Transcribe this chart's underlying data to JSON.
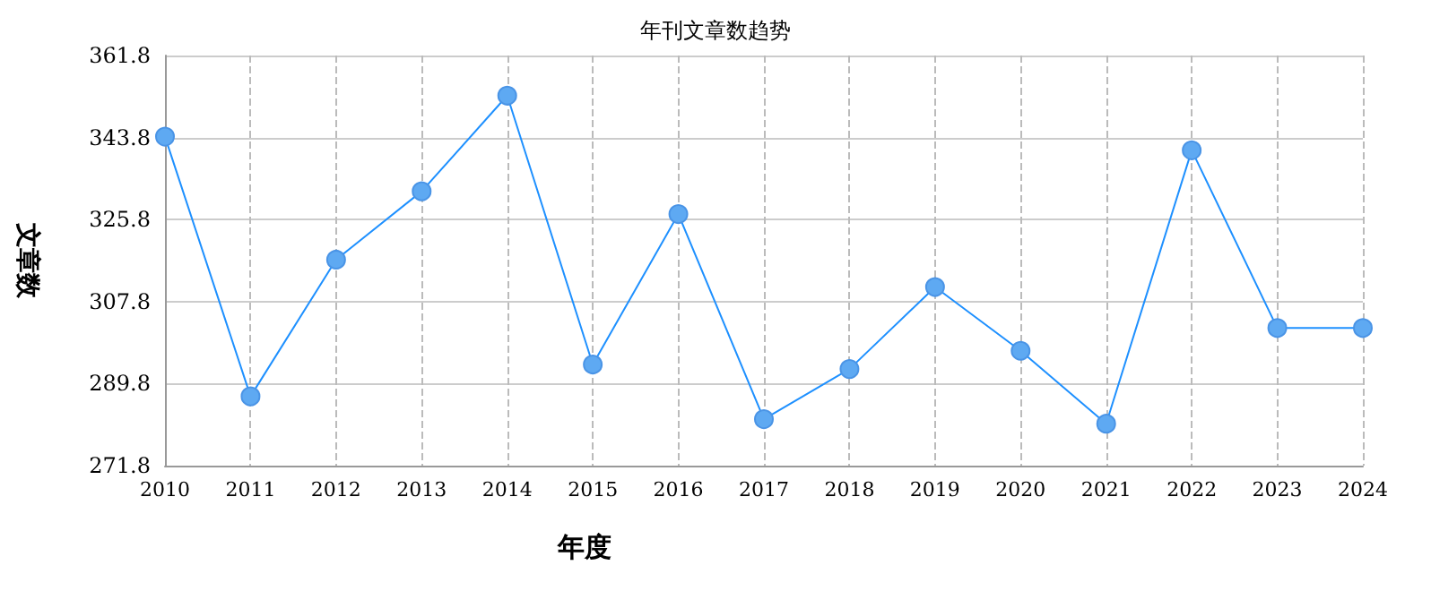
{
  "chart_data": {
    "type": "line",
    "title": "年刊文章数趋势",
    "xlabel": "年度",
    "ylabel": "文章数",
    "categories": [
      "2010",
      "2011",
      "2012",
      "2013",
      "2014",
      "2015",
      "2016",
      "2017",
      "2018",
      "2019",
      "2020",
      "2021",
      "2022",
      "2023",
      "2024"
    ],
    "series": [
      {
        "color": "#1e90ff",
        "values": [
          344,
          287,
          317,
          332,
          353,
          294,
          327,
          282,
          293,
          311,
          297,
          281,
          341,
          302,
          302
        ]
      }
    ],
    "ylim": [
      271.8,
      361.8
    ],
    "yticks": [
      271.8,
      289.8,
      307.8,
      325.8,
      343.8,
      361.8
    ],
    "grid": true,
    "marker": "circle",
    "line_style": "solid"
  }
}
